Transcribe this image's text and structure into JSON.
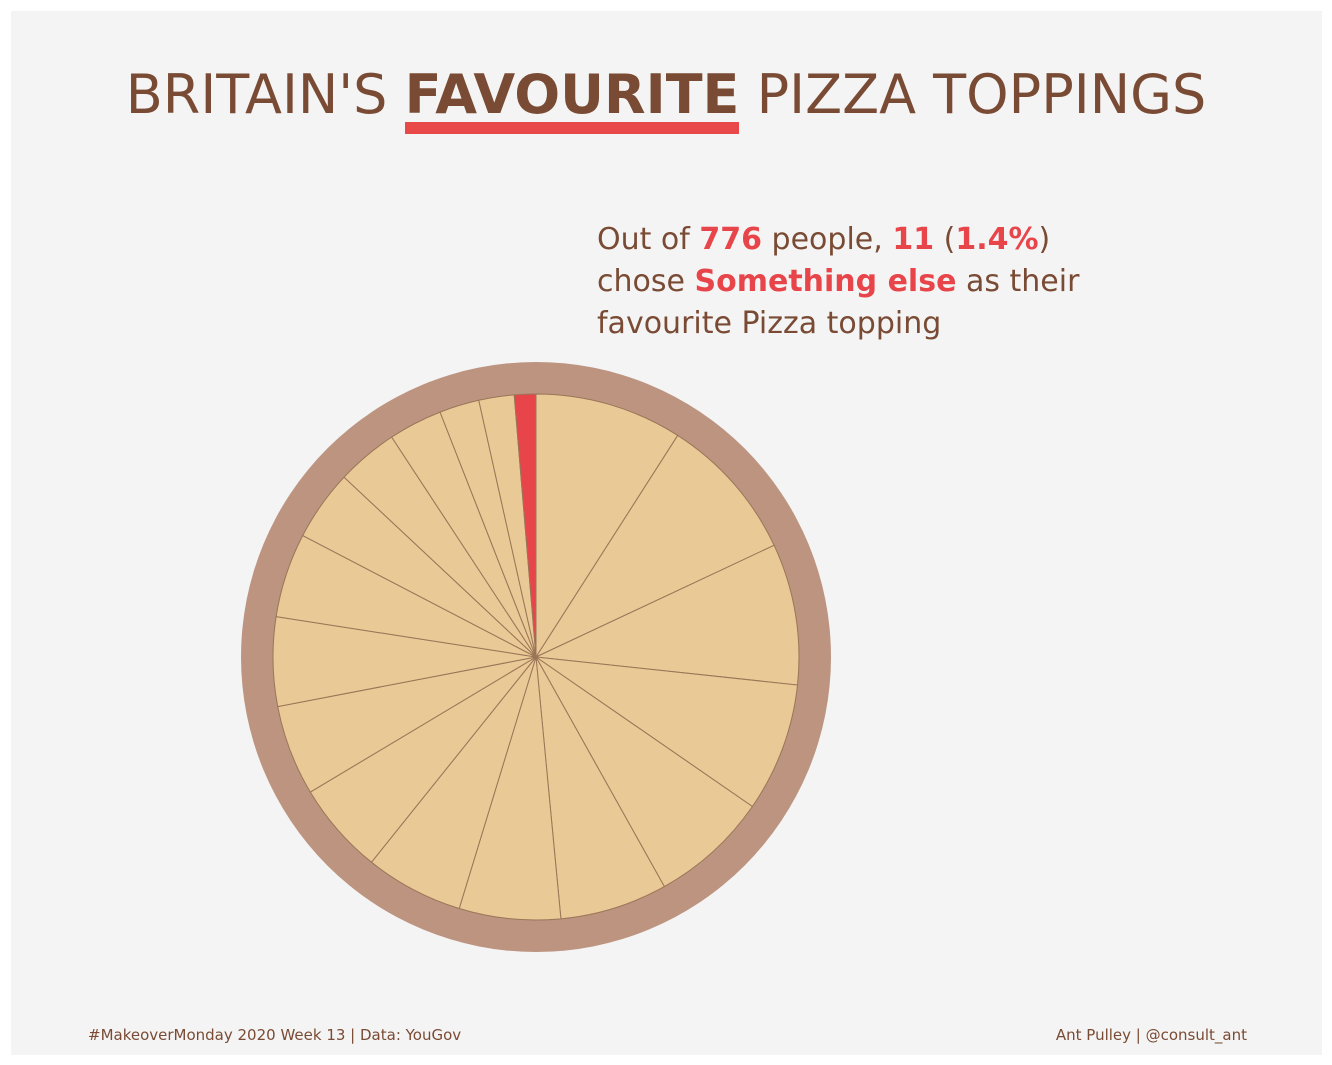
{
  "title": {
    "before": "BRITAIN'S ",
    "highlight": "FAVOURITE",
    "after": " PIZZA TOPPINGS"
  },
  "annotation": {
    "t1": "Out of ",
    "total": "776",
    "t2": " people, ",
    "count": "11",
    "t3": " (",
    "pct": "1.4%",
    "t4": ")",
    "t5": "chose ",
    "topping": "Something else",
    "t6": " as their",
    "t7": "favourite Pizza topping"
  },
  "footer": {
    "left": "#MakeoverMonday 2020 Week 13 | Data: YouGov",
    "right": "Ant Pulley | @consult_ant"
  },
  "colors": {
    "background": "#f4f4f4",
    "crust": "#bc9480",
    "slice": "#e9c995",
    "slice_border": "#9b7558",
    "highlight": "#e8454a",
    "text": "#7a4b34"
  },
  "chart_data": {
    "type": "pie",
    "total": 776,
    "highlight_label": "Something else",
    "highlight_value": 11,
    "highlight_pct": 1.4,
    "slice_percentages": [
      9.6,
      9.5,
      9.2,
      8.4,
      7.7,
      7.0,
      6.6,
      6.4,
      6.0,
      5.9,
      5.8,
      5.5,
      4.6,
      4.0,
      3.5,
      2.6,
      2.3,
      1.4
    ],
    "highlight_index": 17
  }
}
